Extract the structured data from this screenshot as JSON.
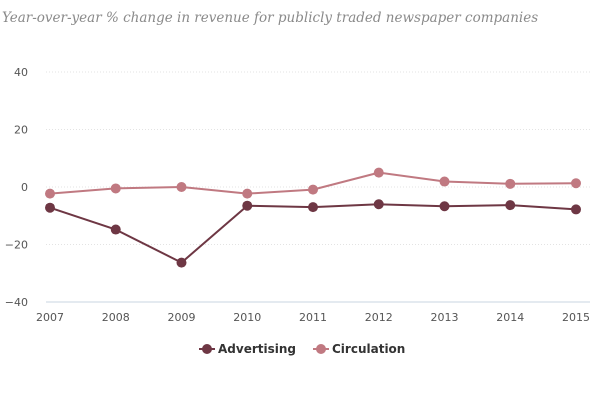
{
  "chart_data": {
    "type": "line",
    "subtitle": "Year-over-year % change in revenue for publicly traded newspaper companies",
    "x": [
      "2007",
      "2008",
      "2009",
      "2010",
      "2011",
      "2012",
      "2013",
      "2014",
      "2015"
    ],
    "ylim": [
      -40,
      40
    ],
    "yticks": [
      40,
      20,
      0,
      -20,
      -40
    ],
    "ytick_labels": [
      "40",
      "20",
      "0",
      "−20",
      "−40"
    ],
    "grid": true,
    "legend_position": "bottom-center",
    "series": [
      {
        "name": "Advertising",
        "color": "#6e3744",
        "values": [
          -7.2,
          -14.8,
          -26.3,
          -6.5,
          -7.0,
          -6.0,
          -6.7,
          -6.3,
          -7.8
        ]
      },
      {
        "name": "Circulation",
        "color": "#c07981",
        "values": [
          -2.3,
          -0.5,
          0.0,
          -2.3,
          -0.9,
          5.0,
          1.9,
          1.1,
          1.3
        ]
      }
    ]
  }
}
